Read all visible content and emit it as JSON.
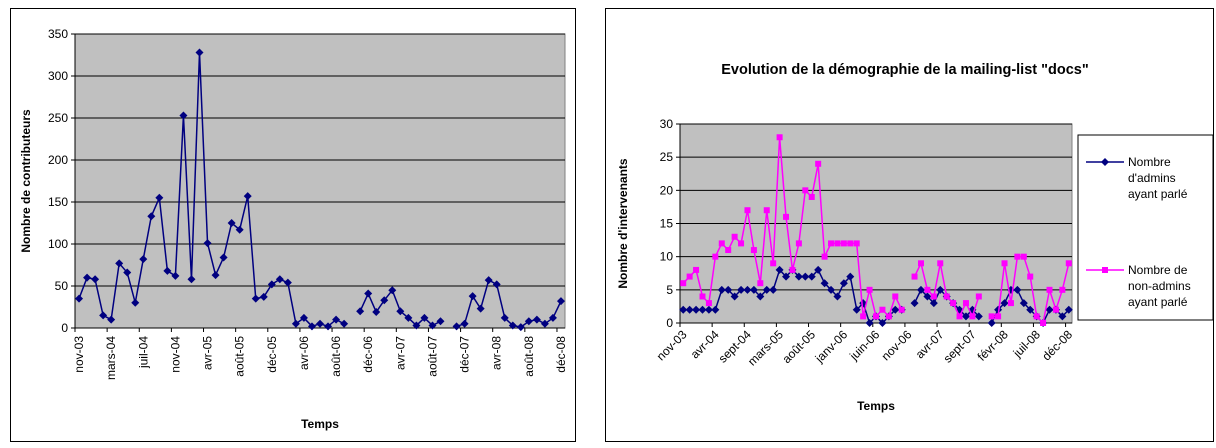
{
  "chart_data": [
    {
      "type": "line",
      "x_label": "Temps",
      "y_label": "Nombre de contributeurs",
      "color": "#000080",
      "marker": "diamond",
      "categories": [
        "nov-03",
        null,
        null,
        null,
        "mars-04",
        null,
        null,
        null,
        "juil-04",
        null,
        null,
        null,
        "nov-04",
        null,
        null,
        null,
        "avr-05",
        null,
        null,
        null,
        "août-05",
        null,
        null,
        null,
        "déc-05",
        null,
        null,
        null,
        "avr-06",
        null,
        null,
        null,
        "août-06",
        null,
        null,
        null,
        "déc-06",
        null,
        null,
        null,
        "avr-07",
        null,
        null,
        null,
        "août-07",
        null,
        null,
        null,
        "déc-07",
        null,
        null,
        null,
        "avr-08",
        null,
        null,
        null,
        "août-08",
        null,
        null,
        null,
        "déc-08"
      ],
      "values": [
        35,
        60,
        58,
        15,
        10,
        77,
        66,
        30,
        82,
        133,
        155,
        68,
        62,
        253,
        58,
        328,
        101,
        63,
        84,
        125,
        117,
        157,
        35,
        37,
        52,
        58,
        54,
        5,
        12,
        2,
        5,
        2,
        10,
        5,
        null,
        20,
        41,
        19,
        33,
        45,
        20,
        12,
        3,
        12,
        3,
        8,
        null,
        2,
        5,
        38,
        23,
        57,
        52,
        12,
        3,
        1,
        8,
        10,
        5,
        12,
        32
      ],
      "ylim": [
        0,
        350
      ],
      "yticks": [
        0,
        50,
        100,
        150,
        200,
        250,
        300,
        350
      ],
      "grid": true
    },
    {
      "type": "line",
      "title": "Evolution de la démographie de la mailing-list \"docs\"",
      "x_label": "Temps",
      "y_label": "Nombre d'intervenants",
      "legend": "right",
      "categories": [
        "nov-03",
        null,
        null,
        null,
        null,
        "avr-04",
        null,
        null,
        null,
        null,
        "sept-04",
        null,
        null,
        null,
        null,
        "mars-05",
        null,
        null,
        null,
        null,
        "août-05",
        null,
        null,
        null,
        null,
        "janv-06",
        null,
        null,
        null,
        null,
        "juin-06",
        null,
        null,
        null,
        null,
        "nov-06",
        null,
        null,
        null,
        null,
        "avr-07",
        null,
        null,
        null,
        null,
        "sept-07",
        null,
        null,
        null,
        null,
        "févr-08",
        null,
        null,
        null,
        null,
        "juil-08",
        null,
        null,
        null,
        null,
        "déc-08"
      ],
      "series": [
        {
          "name": "Nombre d'admins ayant parlé",
          "color": "#000080",
          "marker": "diamond",
          "values": [
            2,
            2,
            2,
            2,
            2,
            2,
            5,
            5,
            4,
            5,
            5,
            5,
            4,
            5,
            5,
            8,
            7,
            8,
            7,
            7,
            7,
            8,
            6,
            5,
            4,
            6,
            7,
            2,
            3,
            0,
            1,
            0,
            1,
            2,
            2,
            null,
            3,
            5,
            4,
            3,
            5,
            4,
            3,
            2,
            1,
            2,
            1,
            null,
            0,
            2,
            3,
            5,
            5,
            3,
            2,
            1,
            0,
            2,
            2,
            1,
            2
          ]
        },
        {
          "name": "Nombre de non-admins ayant parlé",
          "color": "#ff00ff",
          "marker": "square",
          "values": [
            6,
            7,
            8,
            4,
            3,
            10,
            12,
            11,
            13,
            12,
            17,
            11,
            6,
            17,
            9,
            28,
            16,
            8,
            12,
            20,
            19,
            24,
            10,
            12,
            12,
            12,
            12,
            12,
            1,
            5,
            1,
            2,
            1,
            4,
            2,
            null,
            7,
            9,
            5,
            4,
            9,
            4,
            3,
            1,
            3,
            1,
            4,
            null,
            1,
            1,
            9,
            3,
            10,
            10,
            7,
            1,
            0,
            5,
            2,
            5,
            9
          ]
        }
      ],
      "ylim": [
        0,
        30
      ],
      "yticks": [
        0,
        5,
        10,
        15,
        20,
        25,
        30
      ],
      "grid": true
    }
  ]
}
